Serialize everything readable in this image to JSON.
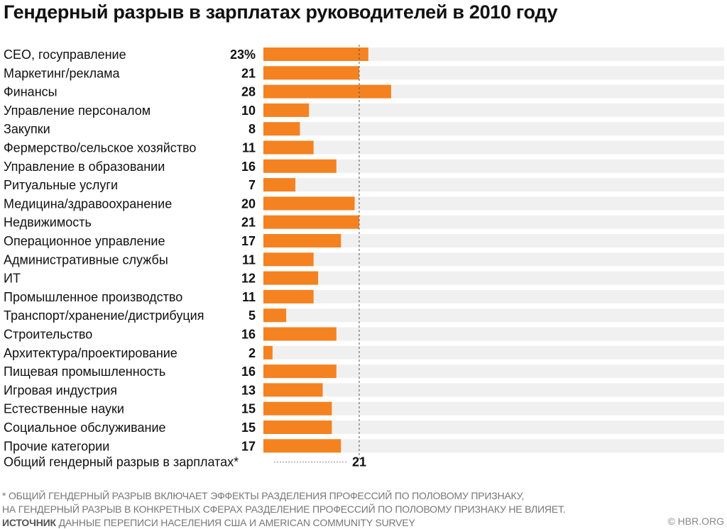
{
  "title": "Гендерный разрыв в зарплатах руководителей в 2010 году",
  "chart_data": {
    "type": "bar",
    "orientation": "horizontal",
    "title": "Гендерный разрыв в зарплатах руководителей в 2010 году",
    "unit": "%",
    "categories": [
      "CEO, госуправление",
      "Маркетинг/реклама",
      "Финансы",
      "Управление персоналом",
      "Закупки",
      "Фермерство/сельское хозяйство",
      "Управление в образовании",
      "Ритуальные услуги",
      "Медицина/здравоохранение",
      "Недвижимость",
      "Операционное управление",
      "Административные службы",
      "ИТ",
      "Промышленное производство",
      "Транспорт/хранение/дистрибуция",
      "Строительство",
      "Архитектура/проектирование",
      "Пищевая промышленность",
      "Игровая индустрия",
      "Естественные науки",
      "Социальное обслуживание",
      "Прочие категории"
    ],
    "values": [
      23,
      21,
      28,
      10,
      8,
      11,
      16,
      7,
      20,
      21,
      17,
      11,
      12,
      11,
      5,
      16,
      2,
      16,
      13,
      15,
      15,
      17
    ],
    "value_labels": [
      "23%",
      "21",
      "28",
      "10",
      "8",
      "11",
      "16",
      "7",
      "20",
      "21",
      "17",
      "11",
      "12",
      "11",
      "5",
      "16",
      "2",
      "16",
      "13",
      "15",
      "15",
      "17"
    ],
    "reference": {
      "label": "Общий гендерный разрыв в зарплатах*",
      "value": 21,
      "value_label": "21"
    },
    "xlim": [
      0,
      101
    ],
    "colors": {
      "bar": "#f58220",
      "track": "#f0f0f0"
    }
  },
  "notes": {
    "line1": "* Общий гендерный разрыв включает эффекты разделения профессий по половому признаку,",
    "line2": "на гендерный разрыв в конкретных сферах разделение профессий по половому признаку не влияет.",
    "source_label": "Источник",
    "source_text": "данные переписи населения США и American Community Survey",
    "credit": "© HBR.ORG"
  }
}
